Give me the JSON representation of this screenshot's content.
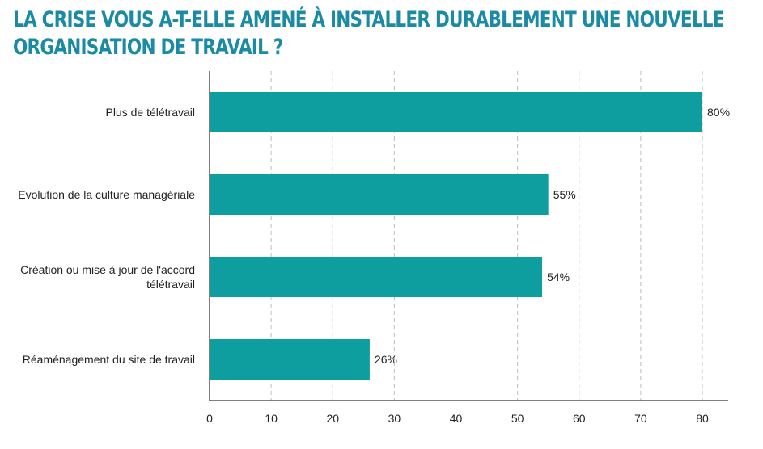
{
  "title_lines": [
    "LA CRISE VOUS A-T-ELLE AMENÉ À INSTALLER DURABLEMENT UNE NOUVELLE",
    "ORGANISATION DE TRAVAIL ?"
  ],
  "colors": {
    "title": "#1a8aa5",
    "bar": "#0f9ea0",
    "grid": "#bdbdbd",
    "axis": "#555555"
  },
  "chart_data": {
    "type": "bar",
    "orientation": "horizontal",
    "categories": [
      [
        "Plus de télétravail"
      ],
      [
        "Evolution de la culture managériale"
      ],
      [
        "Création ou mise à jour de l'accord",
        "télétravail"
      ],
      [
        "Réaménagement du site de travail"
      ]
    ],
    "values": [
      80,
      55,
      54,
      26
    ],
    "value_labels": [
      "80%",
      "55%",
      "54%",
      "26%"
    ],
    "xticks": [
      0,
      10,
      20,
      30,
      40,
      50,
      60,
      70,
      80
    ],
    "xlim": [
      0,
      84
    ],
    "grid": true,
    "grid_style": "dashed-vertical"
  }
}
